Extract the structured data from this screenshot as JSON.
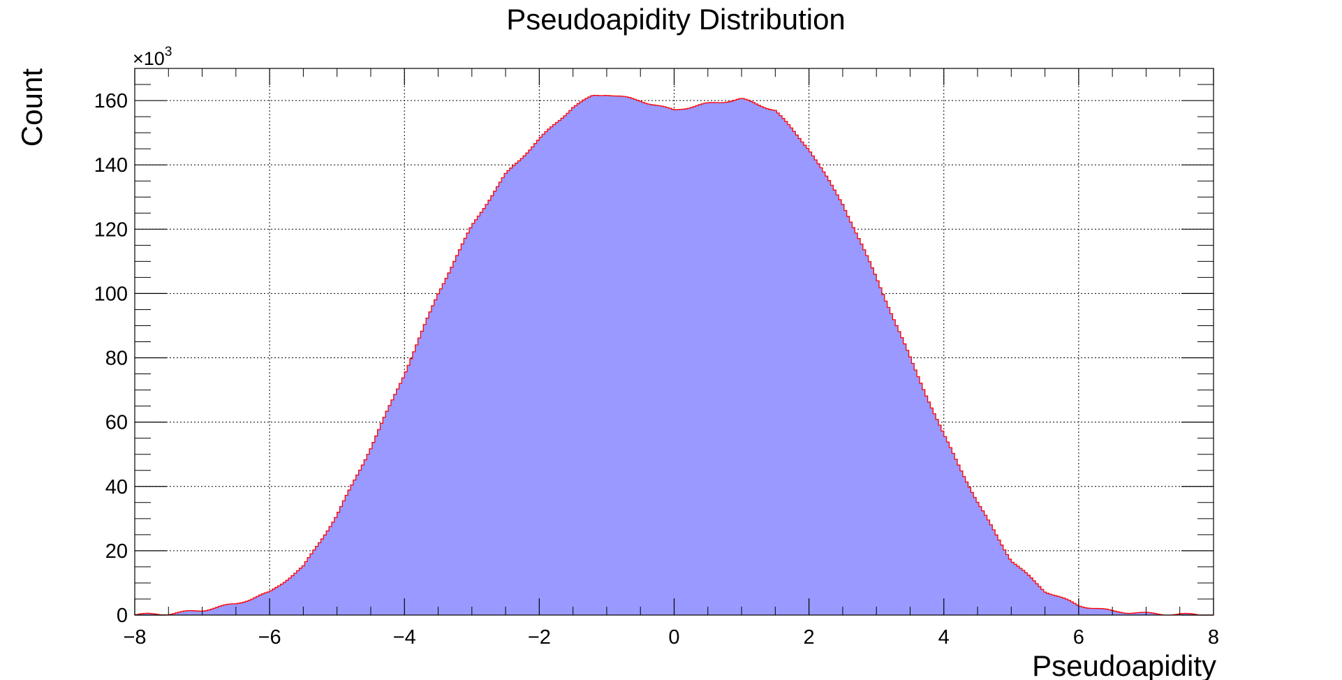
{
  "chart_data": {
    "type": "area",
    "title": "Pseudoapidity Distribution",
    "xlabel": "Pseudoapidity",
    "ylabel": "Count",
    "y_multiplier_label": "×10",
    "y_multiplier_exponent": "3",
    "xlim": [
      -8,
      8
    ],
    "ylim": [
      0,
      170
    ],
    "x_ticks": [
      -8,
      -6,
      -4,
      -2,
      0,
      2,
      4,
      6,
      8
    ],
    "x_tick_labels": [
      "−8",
      "−6",
      "−4",
      "−2",
      "0",
      "2",
      "4",
      "6",
      "8"
    ],
    "y_ticks": [
      0,
      20,
      40,
      60,
      80,
      100,
      120,
      140,
      160
    ],
    "y_tick_labels": [
      "0",
      "20",
      "40",
      "60",
      "80",
      "100",
      "120",
      "140",
      "160"
    ],
    "grid": true,
    "fill_color": "#9999ff",
    "line_color": "#ff0000",
    "series": [
      {
        "x": [
          -8,
          -7.5,
          -7,
          -6.5,
          -6,
          -5.5,
          -5,
          -4.5,
          -4,
          -3.5,
          -3,
          -2.5,
          -2,
          -1.5,
          -1.2,
          -1,
          -0.5,
          -0.1,
          0,
          0.1,
          0.5,
          1,
          1.5,
          2,
          2.5,
          3,
          3.5,
          4,
          4.5,
          5,
          5.5,
          6,
          6.5,
          7,
          7.5,
          8
        ],
        "y": [
          0.1,
          0.4,
          1.5,
          3.5,
          7.0,
          15.0,
          31.0,
          52.0,
          75.0,
          100.0,
          121.0,
          137.0,
          148.0,
          158.0,
          161.5,
          162.0,
          160.0,
          157.5,
          157.0,
          157.5,
          159.0,
          160.5,
          157.0,
          145.0,
          128.0,
          105.0,
          80.0,
          56.0,
          35.0,
          17.0,
          7.5,
          3.0,
          1.2,
          0.5,
          0.2,
          0.1
        ]
      }
    ]
  }
}
